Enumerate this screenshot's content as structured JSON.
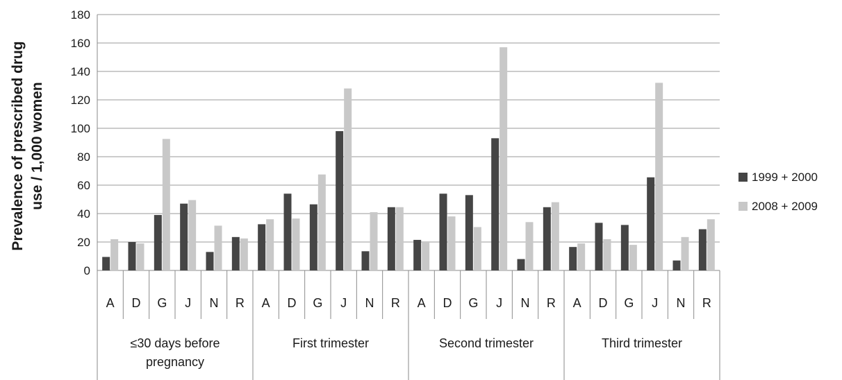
{
  "chart_data": {
    "type": "bar",
    "ylabel_lines": [
      "Prevalence of prescribed drug",
      "use / 1,000 women"
    ],
    "xlabel": "",
    "ylim": [
      0,
      180
    ],
    "yticks": [
      0,
      20,
      40,
      60,
      80,
      100,
      120,
      140,
      160,
      180
    ],
    "grid": true,
    "legend_position": "right",
    "groups": [
      {
        "label_lines": [
          "≤30 days before",
          "pregnancy"
        ],
        "categories": [
          "A",
          "D",
          "G",
          "J",
          "N",
          "R"
        ]
      },
      {
        "label_lines": [
          "First trimester"
        ],
        "categories": [
          "A",
          "D",
          "G",
          "J",
          "N",
          "R"
        ]
      },
      {
        "label_lines": [
          "Second trimester"
        ],
        "categories": [
          "A",
          "D",
          "G",
          "J",
          "N",
          "R"
        ]
      },
      {
        "label_lines": [
          "Third trimester"
        ],
        "categories": [
          "A",
          "D",
          "G",
          "J",
          "N",
          "R"
        ]
      }
    ],
    "series": [
      {
        "name": "1999 + 2000",
        "color": "#454545",
        "values": [
          9.5,
          20,
          39,
          47,
          13,
          23.5,
          32.5,
          54,
          46.5,
          98,
          13.5,
          44.5,
          21.5,
          54,
          53,
          93,
          8,
          44.5,
          16.5,
          33.5,
          32,
          65.5,
          7,
          29
        ]
      },
      {
        "name": "2008 + 2009",
        "color": "#c8c8c8",
        "values": [
          22,
          19,
          92.5,
          49.5,
          31.5,
          22.5,
          36,
          36.5,
          67.5,
          128,
          41,
          44.5,
          20.5,
          38,
          30.5,
          157,
          34,
          48,
          19,
          22,
          18,
          132,
          23.5,
          36
        ]
      }
    ]
  }
}
